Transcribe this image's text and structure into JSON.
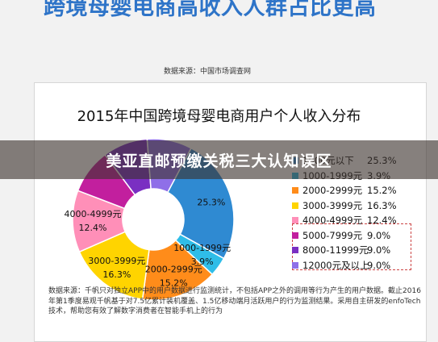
{
  "article": {
    "headline": "跨境母婴电商高收入人群占比更高",
    "source_top": "数据来源：中国市场调查网",
    "banner": "美亚直邮预缴关税三大认知误区",
    "note": "数据来源：千帆只对独立APP中的用户数据进行监测统计，不包括APP之外的调用等行为产生的用户数据。截止2016年第1季度易观千帆基于对7.5亿累计装机覆盖、1.5亿移动端月活跃用户的行为监测结果。采用自主研发的enfoTech技术，帮助您有效了解数字消费者在智能手机上的行为"
  },
  "chart_data": {
    "type": "pie",
    "variant": "donut",
    "title": "2015年中国跨境母婴电商用户个人收入分布",
    "categories": [
      "1000元以下",
      "1000-1999元",
      "2000-2999元",
      "3000-3999元",
      "4000-4999元",
      "5000-7999元",
      "8000-11999元",
      "12000元及以上"
    ],
    "legend_labels": [
      "1000元以下",
      "1000-1999元",
      "2000-2999元",
      "3000-3999元",
      "4000-4999元",
      "5000-7999元",
      "8000-11999元",
      "12000元及以上"
    ],
    "values": [
      25.3,
      3.9,
      15.2,
      16.3,
      12.4,
      9.0,
      9.0,
      9.0
    ],
    "value_labels": [
      "25.3%",
      "3.9%",
      "15.2%",
      "16.3%",
      "12.4%",
      "9.0%",
      "9.0%",
      "9.0%"
    ],
    "colors": [
      "#2f8ad2",
      "#2fbde8",
      "#ff8c1a",
      "#ffd400",
      "#ff8fb8",
      "#c21f9e",
      "#7a2fc2",
      "#8f6fe8"
    ],
    "slice_labels": [
      {
        "name": "",
        "value": "25.3%"
      },
      {
        "name": "1000-1999元",
        "value": "3.9%"
      },
      {
        "name": "2000-2999元",
        "value": "15.2%"
      },
      {
        "name": "3000-3999元",
        "value": "16.3%"
      },
      {
        "name": "4000-4999元",
        "value": "12.4%"
      }
    ],
    "legend_position": "right",
    "highlight_box_categories": [
      "5000-7999元",
      "8000-11999元",
      "12000元及以上"
    ]
  }
}
